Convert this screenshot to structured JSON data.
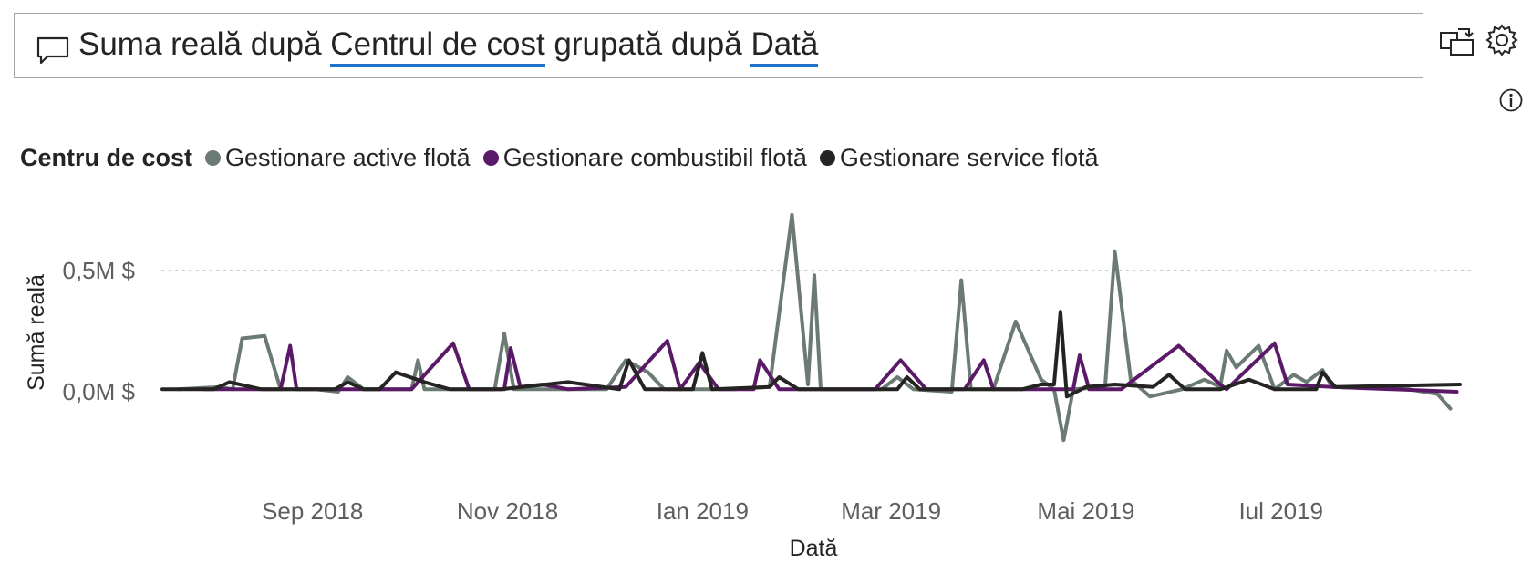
{
  "qa": {
    "question_parts": [
      {
        "text": "Suma reală după ",
        "underlined": false
      },
      {
        "text": "Centrul de cost",
        "underlined": true
      },
      {
        "text": " grupată după ",
        "underlined": false
      },
      {
        "text": "Dată",
        "underlined": true
      }
    ],
    "accent": "#1d73c9"
  },
  "icons": {
    "question": "speech-bubble-icon",
    "turn_into_visual": "convert-visual-icon",
    "settings": "gear-icon",
    "info": "info-icon"
  },
  "chart_data": {
    "type": "line",
    "legend_title": "Centru de cost",
    "legend_position": "top-left",
    "xlabel": "Dată",
    "ylabel": "Sumă reală",
    "x_ticks": [
      "Sep 2018",
      "Nov 2018",
      "Ian 2019",
      "Mar 2019",
      "Mai 2019",
      "Iul 2019"
    ],
    "x_tick_dates": [
      "2018-09-01",
      "2018-11-01",
      "2019-01-01",
      "2019-03-01",
      "2019-05-01",
      "2019-07-01"
    ],
    "x_range": [
      "2018-07-16",
      "2019-08-28"
    ],
    "y_ticks": [
      0,
      0.5
    ],
    "y_tick_labels": [
      "0,0M $",
      "0,5M $"
    ],
    "ylim": [
      -0.23,
      0.73
    ],
    "gridlines": "dotted",
    "series": [
      {
        "name": "Gestionare active flotă",
        "color": "#6b7a72",
        "points": [
          [
            "2018-07-21",
            0.01
          ],
          [
            "2018-08-03",
            0.02
          ],
          [
            "2018-08-07",
            0.01
          ],
          [
            "2018-08-10",
            0.22
          ],
          [
            "2018-08-17",
            0.23
          ],
          [
            "2018-08-22",
            0.01
          ],
          [
            "2018-09-02",
            0.01
          ],
          [
            "2018-09-09",
            0.0
          ],
          [
            "2018-09-12",
            0.06
          ],
          [
            "2018-09-17",
            0.01
          ],
          [
            "2018-10-02",
            0.01
          ],
          [
            "2018-10-04",
            0.13
          ],
          [
            "2018-10-06",
            0.01
          ],
          [
            "2018-10-28",
            0.01
          ],
          [
            "2018-10-31",
            0.24
          ],
          [
            "2018-11-03",
            0.01
          ],
          [
            "2018-12-02",
            0.01
          ],
          [
            "2018-12-08",
            0.13
          ],
          [
            "2018-12-15",
            0.08
          ],
          [
            "2018-12-20",
            0.01
          ],
          [
            "2019-01-11",
            0.01
          ],
          [
            "2019-01-22",
            0.02
          ],
          [
            "2019-01-29",
            0.73
          ],
          [
            "2019-02-03",
            0.03
          ],
          [
            "2019-02-05",
            0.48
          ],
          [
            "2019-02-07",
            0.01
          ],
          [
            "2019-02-26",
            0.01
          ],
          [
            "2019-03-03",
            0.06
          ],
          [
            "2019-03-08",
            0.01
          ],
          [
            "2019-03-20",
            0.0
          ],
          [
            "2019-03-23",
            0.46
          ],
          [
            "2019-03-26",
            0.01
          ],
          [
            "2019-04-02",
            0.01
          ],
          [
            "2019-04-09",
            0.29
          ],
          [
            "2019-04-17",
            0.05
          ],
          [
            "2019-04-21",
            0.01
          ],
          [
            "2019-04-24",
            -0.2
          ],
          [
            "2019-04-27",
            0.01
          ],
          [
            "2019-05-07",
            0.02
          ],
          [
            "2019-05-10",
            0.58
          ],
          [
            "2019-05-15",
            0.05
          ],
          [
            "2019-05-21",
            -0.02
          ],
          [
            "2019-05-31",
            0.01
          ],
          [
            "2019-06-07",
            0.05
          ],
          [
            "2019-06-12",
            0.02
          ],
          [
            "2019-06-14",
            0.17
          ],
          [
            "2019-06-17",
            0.1
          ],
          [
            "2019-06-24",
            0.19
          ],
          [
            "2019-06-29",
            0.01
          ],
          [
            "2019-07-05",
            0.07
          ],
          [
            "2019-07-09",
            0.04
          ],
          [
            "2019-07-14",
            0.09
          ],
          [
            "2019-07-17",
            0.02
          ],
          [
            "2019-08-10",
            0.01
          ],
          [
            "2019-08-19",
            -0.01
          ],
          [
            "2019-08-23",
            -0.07
          ]
        ]
      },
      {
        "name": "Gestionare combustibil flotă",
        "color": "#5b1a67",
        "points": [
          [
            "2018-07-29",
            0.01
          ],
          [
            "2018-08-22",
            0.01
          ],
          [
            "2018-08-25",
            0.19
          ],
          [
            "2018-08-27",
            0.01
          ],
          [
            "2018-10-02",
            0.01
          ],
          [
            "2018-10-15",
            0.2
          ],
          [
            "2018-10-20",
            0.01
          ],
          [
            "2018-10-31",
            0.01
          ],
          [
            "2018-11-02",
            0.18
          ],
          [
            "2018-11-05",
            0.02
          ],
          [
            "2018-11-12",
            0.03
          ],
          [
            "2018-11-20",
            0.01
          ],
          [
            "2018-12-08",
            0.02
          ],
          [
            "2018-12-21",
            0.21
          ],
          [
            "2018-12-25",
            0.01
          ],
          [
            "2018-12-31",
            0.12
          ],
          [
            "2019-01-06",
            0.01
          ],
          [
            "2019-01-17",
            0.01
          ],
          [
            "2019-01-19",
            0.13
          ],
          [
            "2019-01-25",
            0.01
          ],
          [
            "2019-02-24",
            0.01
          ],
          [
            "2019-03-04",
            0.13
          ],
          [
            "2019-03-12",
            0.01
          ],
          [
            "2019-03-24",
            0.01
          ],
          [
            "2019-03-30",
            0.13
          ],
          [
            "2019-04-02",
            0.01
          ],
          [
            "2019-04-27",
            0.01
          ],
          [
            "2019-04-29",
            0.15
          ],
          [
            "2019-05-02",
            0.01
          ],
          [
            "2019-05-12",
            0.01
          ],
          [
            "2019-05-30",
            0.19
          ],
          [
            "2019-06-12",
            0.03
          ],
          [
            "2019-06-14",
            0.01
          ],
          [
            "2019-06-29",
            0.2
          ],
          [
            "2019-07-03",
            0.03
          ],
          [
            "2019-07-17",
            0.02
          ],
          [
            "2019-08-25",
            0.0
          ]
        ]
      },
      {
        "name": "Gestionare service flotă",
        "color": "#252423",
        "points": [
          [
            "2018-07-16",
            0.01
          ],
          [
            "2018-08-01",
            0.01
          ],
          [
            "2018-08-06",
            0.04
          ],
          [
            "2018-08-16",
            0.01
          ],
          [
            "2018-09-08",
            0.01
          ],
          [
            "2018-09-12",
            0.04
          ],
          [
            "2018-09-17",
            0.01
          ],
          [
            "2018-09-22",
            0.01
          ],
          [
            "2018-09-27",
            0.08
          ],
          [
            "2018-10-06",
            0.04
          ],
          [
            "2018-10-14",
            0.01
          ],
          [
            "2018-10-30",
            0.01
          ],
          [
            "2018-11-20",
            0.04
          ],
          [
            "2018-12-06",
            0.01
          ],
          [
            "2018-12-09",
            0.13
          ],
          [
            "2018-12-14",
            0.01
          ],
          [
            "2018-12-29",
            0.01
          ],
          [
            "2019-01-01",
            0.16
          ],
          [
            "2019-01-04",
            0.01
          ],
          [
            "2019-01-22",
            0.02
          ],
          [
            "2019-01-25",
            0.06
          ],
          [
            "2019-01-31",
            0.01
          ],
          [
            "2019-03-03",
            0.01
          ],
          [
            "2019-03-06",
            0.06
          ],
          [
            "2019-03-10",
            0.01
          ],
          [
            "2019-04-11",
            0.01
          ],
          [
            "2019-04-17",
            0.03
          ],
          [
            "2019-04-21",
            0.03
          ],
          [
            "2019-04-23",
            0.33
          ],
          [
            "2019-04-25",
            -0.02
          ],
          [
            "2019-05-01",
            0.02
          ],
          [
            "2019-05-10",
            0.03
          ],
          [
            "2019-05-22",
            0.02
          ],
          [
            "2019-05-27",
            0.07
          ],
          [
            "2019-06-01",
            0.01
          ],
          [
            "2019-06-12",
            0.01
          ],
          [
            "2019-06-21",
            0.05
          ],
          [
            "2019-06-29",
            0.01
          ],
          [
            "2019-07-12",
            0.01
          ],
          [
            "2019-07-14",
            0.08
          ],
          [
            "2019-07-18",
            0.02
          ],
          [
            "2019-08-26",
            0.03
          ]
        ]
      }
    ]
  }
}
